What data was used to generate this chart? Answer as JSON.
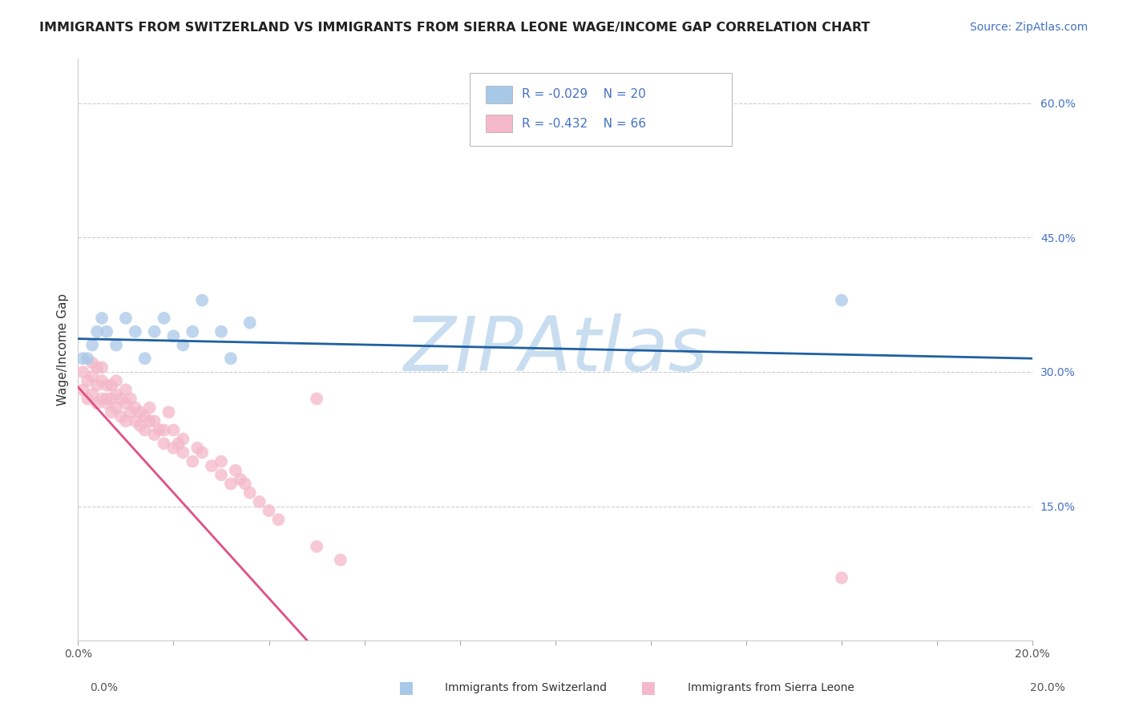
{
  "title": "IMMIGRANTS FROM SWITZERLAND VS IMMIGRANTS FROM SIERRA LEONE WAGE/INCOME GAP CORRELATION CHART",
  "source": "Source: ZipAtlas.com",
  "ylabel": "Wage/Income Gap",
  "xlim": [
    0.0,
    0.2
  ],
  "ylim": [
    0.0,
    0.65
  ],
  "xticks": [
    0.0,
    0.02,
    0.04,
    0.06,
    0.08,
    0.1,
    0.12,
    0.14,
    0.16,
    0.18,
    0.2
  ],
  "xtick_labels_show": [
    "0.0%",
    "",
    "",
    "",
    "",
    "",
    "",
    "",
    "",
    "",
    "20.0%"
  ],
  "yticks_right": [
    0.15,
    0.3,
    0.45,
    0.6
  ],
  "ytick_right_labels": [
    "15.0%",
    "30.0%",
    "45.0%",
    "60.0%"
  ],
  "legend_labels": [
    "Immigrants from Switzerland",
    "Immigrants from Sierra Leone"
  ],
  "legend_R": [
    -0.029,
    -0.432
  ],
  "legend_N": [
    20,
    66
  ],
  "blue_color": "#a8c8e8",
  "pink_color": "#f4b8c8",
  "blue_line_color": "#2060a0",
  "pink_line_color": "#e05080",
  "blue_scatter_x": [
    0.001,
    0.002,
    0.003,
    0.004,
    0.005,
    0.006,
    0.008,
    0.01,
    0.012,
    0.014,
    0.016,
    0.018,
    0.02,
    0.022,
    0.024,
    0.026,
    0.03,
    0.032,
    0.16,
    0.036
  ],
  "blue_scatter_y": [
    0.315,
    0.315,
    0.33,
    0.345,
    0.36,
    0.345,
    0.33,
    0.36,
    0.345,
    0.315,
    0.345,
    0.36,
    0.34,
    0.33,
    0.345,
    0.38,
    0.345,
    0.315,
    0.38,
    0.355
  ],
  "pink_scatter_x": [
    0.001,
    0.001,
    0.002,
    0.002,
    0.003,
    0.003,
    0.003,
    0.004,
    0.004,
    0.004,
    0.005,
    0.005,
    0.005,
    0.006,
    0.006,
    0.006,
    0.007,
    0.007,
    0.007,
    0.008,
    0.008,
    0.008,
    0.009,
    0.009,
    0.01,
    0.01,
    0.01,
    0.011,
    0.011,
    0.012,
    0.012,
    0.013,
    0.013,
    0.014,
    0.014,
    0.015,
    0.015,
    0.016,
    0.016,
    0.017,
    0.018,
    0.018,
    0.019,
    0.02,
    0.02,
    0.021,
    0.022,
    0.022,
    0.024,
    0.025,
    0.026,
    0.028,
    0.03,
    0.03,
    0.032,
    0.033,
    0.034,
    0.035,
    0.036,
    0.038,
    0.04,
    0.042,
    0.05,
    0.055,
    0.16,
    0.05
  ],
  "pink_scatter_y": [
    0.28,
    0.3,
    0.27,
    0.29,
    0.275,
    0.295,
    0.31,
    0.265,
    0.285,
    0.305,
    0.27,
    0.29,
    0.305,
    0.265,
    0.285,
    0.27,
    0.255,
    0.27,
    0.285,
    0.26,
    0.275,
    0.29,
    0.25,
    0.27,
    0.245,
    0.265,
    0.28,
    0.255,
    0.27,
    0.245,
    0.26,
    0.24,
    0.255,
    0.235,
    0.25,
    0.245,
    0.26,
    0.23,
    0.245,
    0.235,
    0.22,
    0.235,
    0.255,
    0.215,
    0.235,
    0.22,
    0.21,
    0.225,
    0.2,
    0.215,
    0.21,
    0.195,
    0.185,
    0.2,
    0.175,
    0.19,
    0.18,
    0.175,
    0.165,
    0.155,
    0.145,
    0.135,
    0.105,
    0.09,
    0.07,
    0.27
  ],
  "blue_trendline_x": [
    0.0,
    0.2
  ],
  "blue_trendline_y": [
    0.337,
    0.315
  ],
  "pink_trendline_x": [
    0.0,
    0.048
  ],
  "pink_trendline_y": [
    0.283,
    0.0
  ],
  "watermark": "ZIPAtlas",
  "watermark_color": "#c8ddf0",
  "background_color": "#ffffff",
  "grid_color": "#cccccc"
}
